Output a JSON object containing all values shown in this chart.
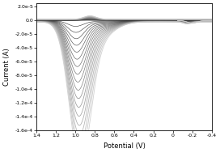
{
  "title": "",
  "xlabel": "Potential (V)",
  "ylabel": "Current (A)",
  "xlim": [
    1.4,
    -0.4
  ],
  "ylim": [
    -0.00016,
    2.5e-05
  ],
  "yticks": [
    2e-05,
    0.0,
    -2e-05,
    -4e-05,
    -6e-05,
    -8e-05,
    -0.0001,
    -0.00012,
    -0.00014,
    -0.00016
  ],
  "xticks": [
    1.4,
    1.2,
    1.0,
    0.8,
    0.6,
    0.4,
    0.2,
    0.0,
    -0.2,
    -0.4
  ],
  "n_cycles": 18,
  "background_color": "#ffffff",
  "figsize": [
    2.72,
    1.89
  ],
  "dpi": 100
}
